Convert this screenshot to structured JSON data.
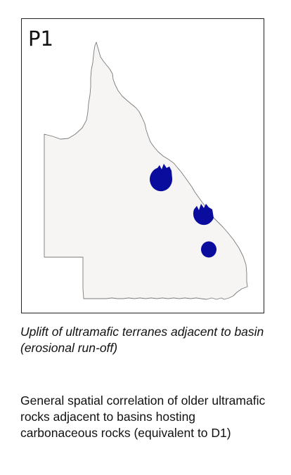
{
  "panel": {
    "label": "P1"
  },
  "map": {
    "region_fill": "#f6f5f4",
    "region_outline": "#7a7a7a",
    "marker_color": "#0a0c9e",
    "markers": [
      {
        "name": "ultramafic-terrane-north"
      },
      {
        "name": "ultramafic-terrane-central"
      },
      {
        "name": "ultramafic-terrane-south"
      }
    ]
  },
  "caption": "Uplift of ultramafic terranes adjacent to basin (erosional run-off)",
  "description": "General spatial correlation of older ultramafic rocks adjacent to basins hosting carbonaceous rocks (equivalent to D1)"
}
